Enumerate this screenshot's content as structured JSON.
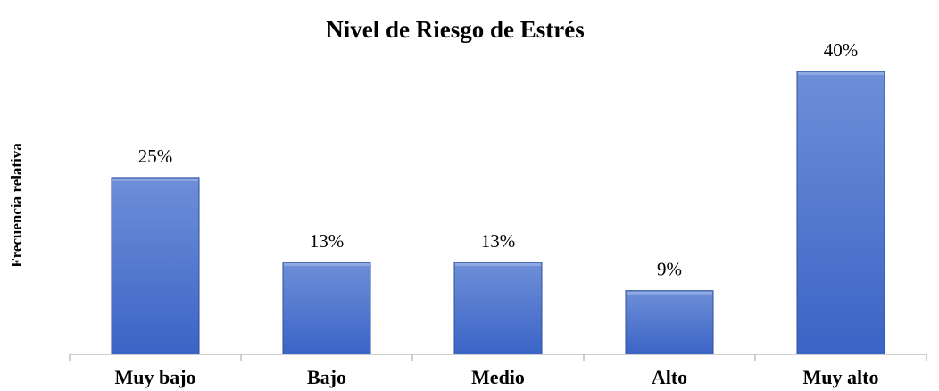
{
  "chart_data": {
    "type": "bar",
    "title": "Nivel de Riesgo de Estrés",
    "ylabel": "Frecuencia relativa",
    "xlabel": "",
    "categories": [
      "Muy bajo",
      "Bajo",
      "Medio",
      "Alto",
      "Muy alto"
    ],
    "values": [
      25,
      13,
      13,
      9,
      40
    ],
    "data_labels": [
      "25%",
      "13%",
      "13%",
      "9%",
      "40%"
    ],
    "ylim": [
      0,
      40
    ],
    "grid": false,
    "legend": "none",
    "colors": {
      "bar_top": "#6e8fd8",
      "bar_bottom": "#3a64c6",
      "bar_edge": "#2f4f9a",
      "axis": "#bfbfbf"
    }
  }
}
